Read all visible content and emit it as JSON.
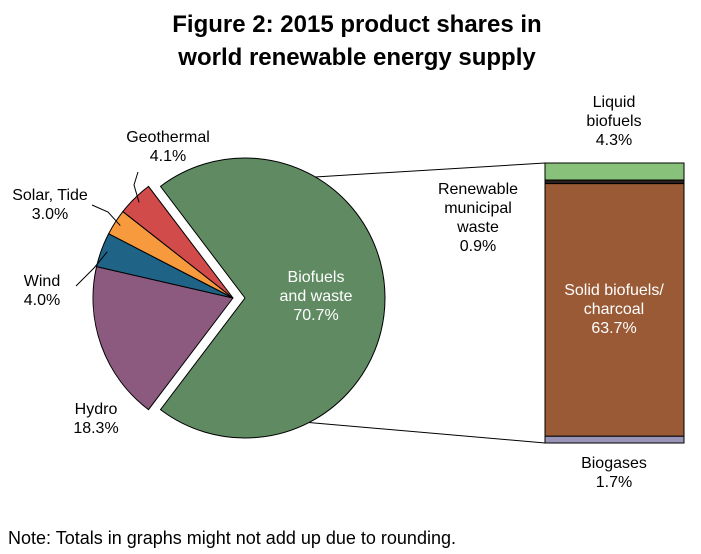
{
  "chart_data": {
    "type": "pie",
    "title_lines": [
      "Figure 2: 2015 product shares in",
      "world renewable energy supply"
    ],
    "pie": {
      "slices": [
        {
          "label": "Biofuels and waste",
          "label_lines": [
            "Biofuels",
            "and waste"
          ],
          "value": 70.7,
          "value_label": "70.7%",
          "color": "#5f8a62"
        },
        {
          "label": "Hydro",
          "label_lines": [
            "Hydro"
          ],
          "value": 18.3,
          "value_label": "18.3%",
          "color": "#8b5a7e"
        },
        {
          "label": "Wind",
          "label_lines": [
            "Wind"
          ],
          "value": 4.0,
          "value_label": "4.0%",
          "color": "#1f6386"
        },
        {
          "label": "Solar, Tide",
          "label_lines": [
            "Solar, Tide"
          ],
          "value": 3.0,
          "value_label": "3.0%",
          "color": "#f7993d"
        },
        {
          "label": "Geothermal",
          "label_lines": [
            "Geothermal"
          ],
          "value": 4.1,
          "value_label": "4.1%",
          "color": "#d24b4b"
        }
      ]
    },
    "breakdown": {
      "of": "Biofuels and waste",
      "segments": [
        {
          "label": "Liquid biofuels",
          "label_lines": [
            "Liquid",
            "biofuels"
          ],
          "value": 4.3,
          "value_label": "4.3%",
          "color": "#88c27a"
        },
        {
          "label": "Renewable municipal waste",
          "label_lines": [
            "Renewable",
            "municipal",
            "waste"
          ],
          "value": 0.9,
          "value_label": "0.9%",
          "color": "#2b211c"
        },
        {
          "label": "Solid biofuels/ charcoal",
          "label_lines": [
            "Solid biofuels/",
            "charcoal"
          ],
          "value": 63.7,
          "value_label": "63.7%",
          "color": "#9a5a35"
        },
        {
          "label": "Biogases",
          "label_lines": [
            "Biogases"
          ],
          "value": 1.7,
          "value_label": "1.7%",
          "color": "#9a95b8"
        }
      ]
    },
    "note": "Note: Totals in graphs might not add up due to rounding."
  }
}
